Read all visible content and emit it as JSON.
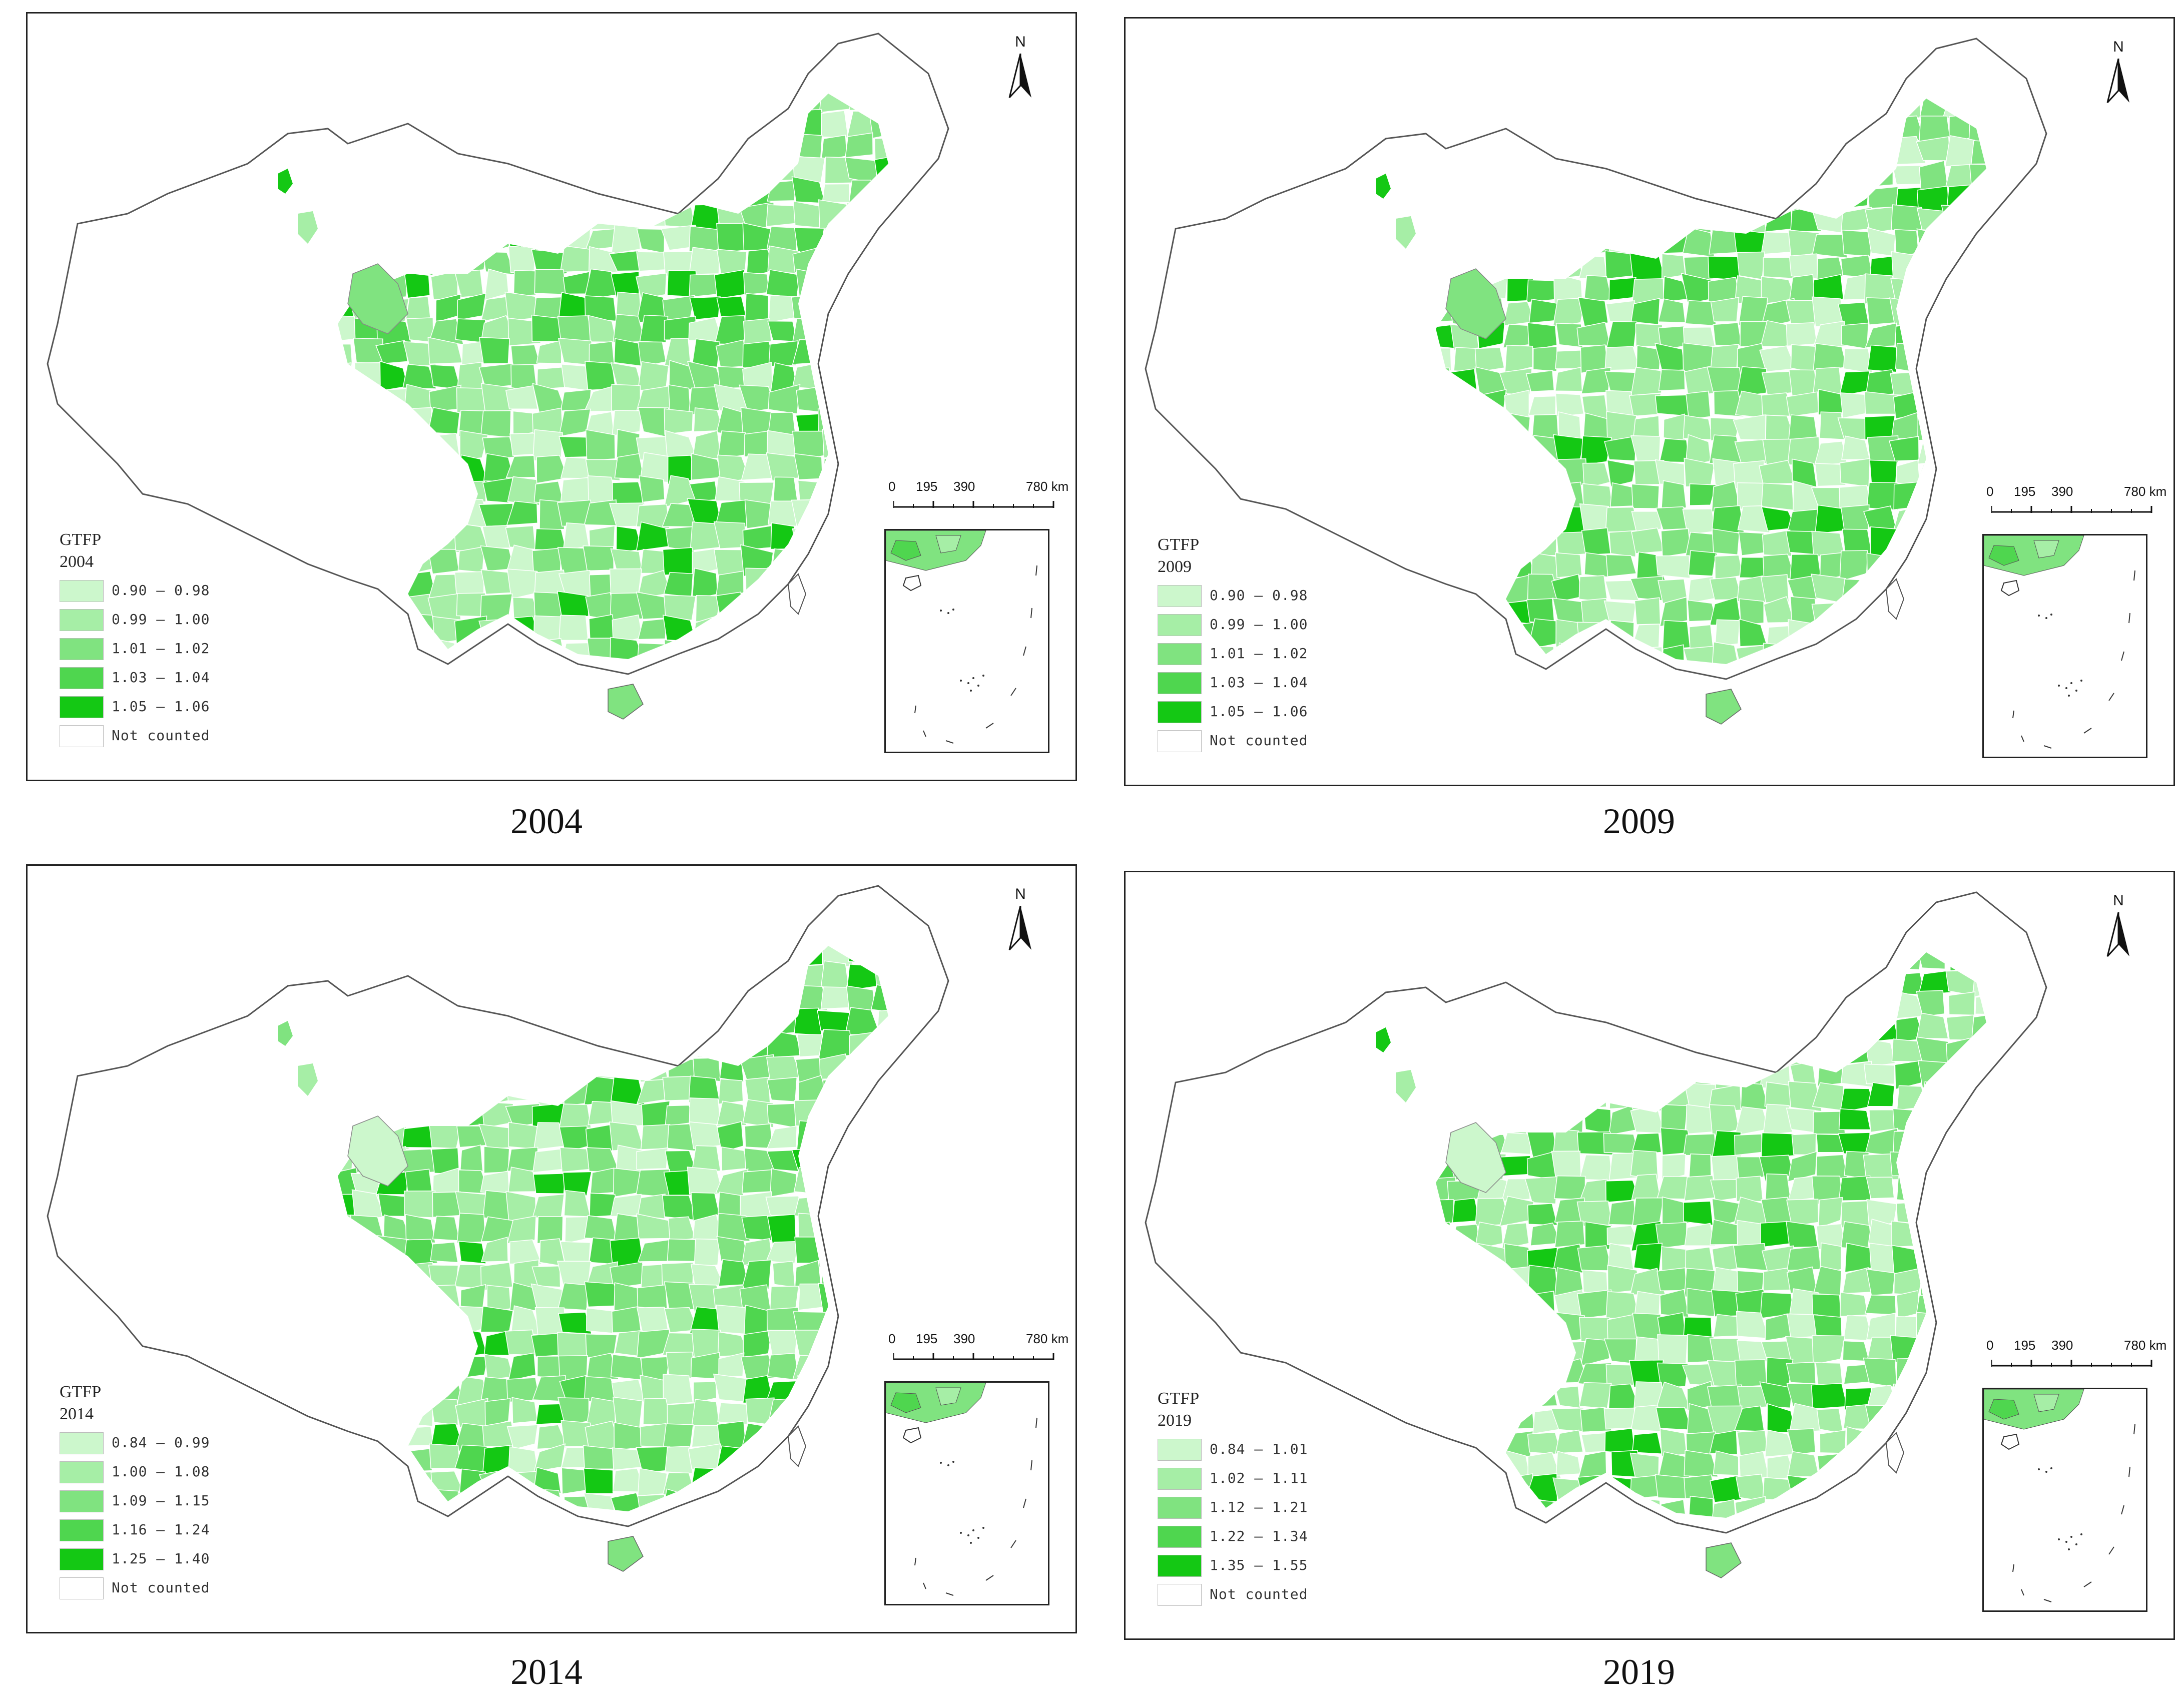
{
  "panels": [
    {
      "caption": "2004",
      "legend": {
        "title": "GTFP",
        "year": "2004",
        "classes": [
          {
            "label": "0.90 – 0.98",
            "color": "#ccf7cc"
          },
          {
            "label": "0.99 – 1.00",
            "color": "#a6eea6"
          },
          {
            "label": "1.01 – 1.02",
            "color": "#80e380"
          },
          {
            "label": "1.03 – 1.04",
            "color": "#4fd64f"
          },
          {
            "label": "1.05 – 1.06",
            "color": "#14c814"
          },
          {
            "label": "Not counted",
            "color": "#ffffff"
          }
        ]
      }
    },
    {
      "caption": "2009",
      "legend": {
        "title": "GTFP",
        "year": "2009",
        "classes": [
          {
            "label": "0.90 – 0.98",
            "color": "#ccf7cc"
          },
          {
            "label": "0.99 – 1.00",
            "color": "#a6eea6"
          },
          {
            "label": "1.01 – 1.02",
            "color": "#80e380"
          },
          {
            "label": "1.03 – 1.04",
            "color": "#4fd64f"
          },
          {
            "label": "1.05 – 1.06",
            "color": "#14c814"
          },
          {
            "label": "Not counted",
            "color": "#ffffff"
          }
        ]
      }
    },
    {
      "caption": "2014",
      "legend": {
        "title": "GTFP",
        "year": "2014",
        "classes": [
          {
            "label": "0.84 – 0.99",
            "color": "#ccf7cc"
          },
          {
            "label": "1.00 – 1.08",
            "color": "#a6eea6"
          },
          {
            "label": "1.09 – 1.15",
            "color": "#80e380"
          },
          {
            "label": "1.16 – 1.24",
            "color": "#4fd64f"
          },
          {
            "label": "1.25 – 1.40",
            "color": "#14c814"
          },
          {
            "label": "Not counted",
            "color": "#ffffff"
          }
        ]
      }
    },
    {
      "caption": "2019",
      "legend": {
        "title": "GTFP",
        "year": "2019",
        "classes": [
          {
            "label": "0.84 – 1.01",
            "color": "#ccf7cc"
          },
          {
            "label": "1.02 – 1.11",
            "color": "#a6eea6"
          },
          {
            "label": "1.12 – 1.21",
            "color": "#80e380"
          },
          {
            "label": "1.22 – 1.34",
            "color": "#4fd64f"
          },
          {
            "label": "1.35 – 1.55",
            "color": "#14c814"
          },
          {
            "label": "Not counted",
            "color": "#ffffff"
          }
        ]
      }
    }
  ],
  "north_label": "N",
  "scale_labels": [
    "0",
    "195",
    "390",
    "780 km"
  ],
  "icons": {
    "north_arrow": "north-arrow-icon"
  }
}
